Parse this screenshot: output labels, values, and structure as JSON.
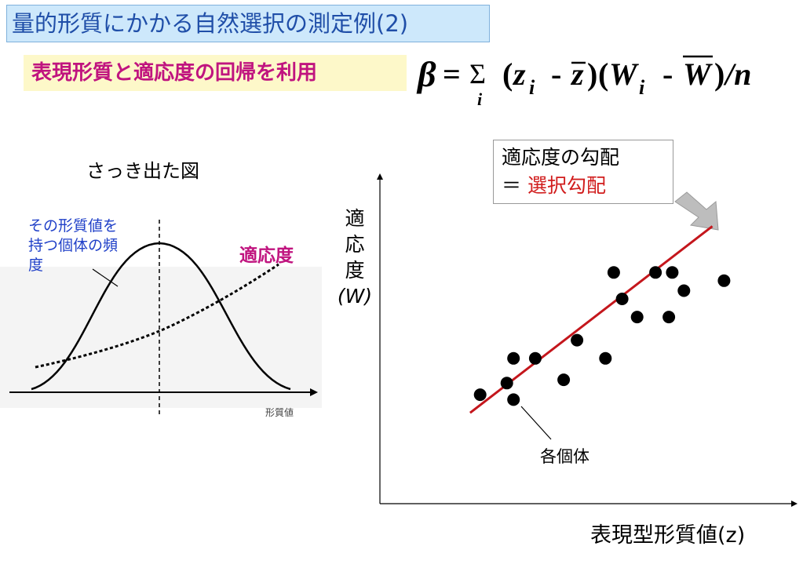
{
  "title": "量的形質にかかる自然選択の測定例(2)",
  "subtitle": "表現形質と適応度の回帰を利用",
  "formula": {
    "beta": "β",
    "equals": "=",
    "sum": "Σ",
    "sum_index": "i",
    "z": "z",
    "zi_sub": "i",
    "minus": "-",
    "zbar": "z",
    "W": "W",
    "Wi_sub": "i",
    "Wbar": "W",
    "divide_n": "/n"
  },
  "left_figure": {
    "caption": "さっき出た図",
    "curve_label": "その形質値を持つ個体の頻度",
    "curve_label_lines": [
      "その形質値を",
      "持つ個体の頻",
      "度"
    ],
    "fitness_label": "適応度",
    "x_axis_label": "形質値"
  },
  "right_figure": {
    "callout_line1": "適応度の勾配",
    "callout_line2_prefix": "＝ ",
    "callout_line2_red": "選択勾配",
    "y_label_lines": [
      "適",
      "応",
      "度"
    ],
    "y_label_symbol": "(W)",
    "x_label": "表現型形質値(z)",
    "individual_label": "各個体"
  },
  "chart_data": {
    "type": "scatter",
    "points": [
      [
        1.0,
        1.6
      ],
      [
        3.0,
        1.3
      ],
      [
        2.6,
        2.3
      ],
      [
        3.0,
        3.8
      ],
      [
        4.3,
        3.8
      ],
      [
        6.0,
        2.5
      ],
      [
        6.8,
        4.9
      ],
      [
        8.5,
        3.8
      ],
      [
        9.0,
        9.0
      ],
      [
        9.5,
        7.4
      ],
      [
        10.4,
        6.3
      ],
      [
        11.5,
        9.0
      ],
      [
        12.3,
        6.3
      ],
      [
        12.5,
        9.0
      ],
      [
        13.2,
        7.9
      ],
      [
        15.6,
        8.5
      ]
    ],
    "regression_line": {
      "x": [
        0.4,
        14.9
      ],
      "y": [
        0.5,
        11.8
      ]
    },
    "xlim": [
      -5,
      20
    ],
    "ylim": [
      -5,
      15
    ],
    "colors": {
      "points": "#000000",
      "line": "#c4161c"
    }
  },
  "colors": {
    "title_text": "#1f4ea8",
    "title_bg": "#cde8fb",
    "subtitle_text": "#c0147f",
    "subtitle_bg": "#fdf8c9",
    "red": "#d11d1d",
    "blue_label": "#2040c8"
  }
}
